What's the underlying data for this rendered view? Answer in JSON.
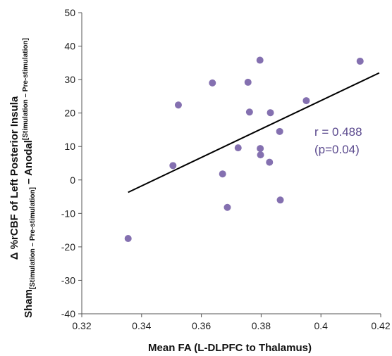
{
  "chart_data": {
    "type": "scatter",
    "xlabel": "Mean FA (L-DLPFC to Thalamus)",
    "ylabel": {
      "line1": "Δ %rCBF of Left Posterior Insula",
      "line2_main_a": "Sham",
      "line2_sub_a": "[Stimulation – Pre-stimulation]",
      "line2_main_b": " – Anodal",
      "line2_sub_b": "[Stimulation – Pre-stimulation]"
    },
    "xlim": [
      0.32,
      0.42
    ],
    "ylim": [
      -40,
      50
    ],
    "xticks": [
      0.32,
      0.34,
      0.36,
      0.38,
      0.4,
      0.42
    ],
    "xtick_labels": [
      "0.32",
      "0.34",
      "0.36",
      "0.38",
      "0.4",
      "0.42"
    ],
    "yticks": [
      -40,
      -30,
      -20,
      -10,
      0,
      10,
      20,
      30,
      40,
      50
    ],
    "ytick_labels": [
      "-40",
      "-30",
      "-20",
      "-10",
      "0",
      "10",
      "20",
      "30",
      "40",
      "50"
    ],
    "grid": false,
    "point_color": "#8470b0",
    "line_color": "#000000",
    "annotation_color": "#5b4a8e",
    "points": [
      {
        "x": 0.3355,
        "y": -17.5
      },
      {
        "x": 0.3505,
        "y": 4.3
      },
      {
        "x": 0.3523,
        "y": 22.4
      },
      {
        "x": 0.3637,
        "y": 29.0
      },
      {
        "x": 0.3671,
        "y": 1.8
      },
      {
        "x": 0.3687,
        "y": -8.2
      },
      {
        "x": 0.3723,
        "y": 9.6
      },
      {
        "x": 0.3756,
        "y": 29.2
      },
      {
        "x": 0.3761,
        "y": 20.3
      },
      {
        "x": 0.3796,
        "y": 35.8
      },
      {
        "x": 0.3797,
        "y": 9.4
      },
      {
        "x": 0.3798,
        "y": 7.5
      },
      {
        "x": 0.3828,
        "y": 5.3
      },
      {
        "x": 0.3831,
        "y": 20.1
      },
      {
        "x": 0.3862,
        "y": 14.5
      },
      {
        "x": 0.3864,
        "y": -6.0
      },
      {
        "x": 0.3951,
        "y": 23.7
      },
      {
        "x": 0.4131,
        "y": 35.5
      }
    ],
    "trendline": {
      "x": [
        0.3355,
        0.4195
      ],
      "y": [
        -3.7,
        32.0
      ]
    },
    "annotations": [
      "r = 0.488",
      "(p=0.04)"
    ]
  }
}
